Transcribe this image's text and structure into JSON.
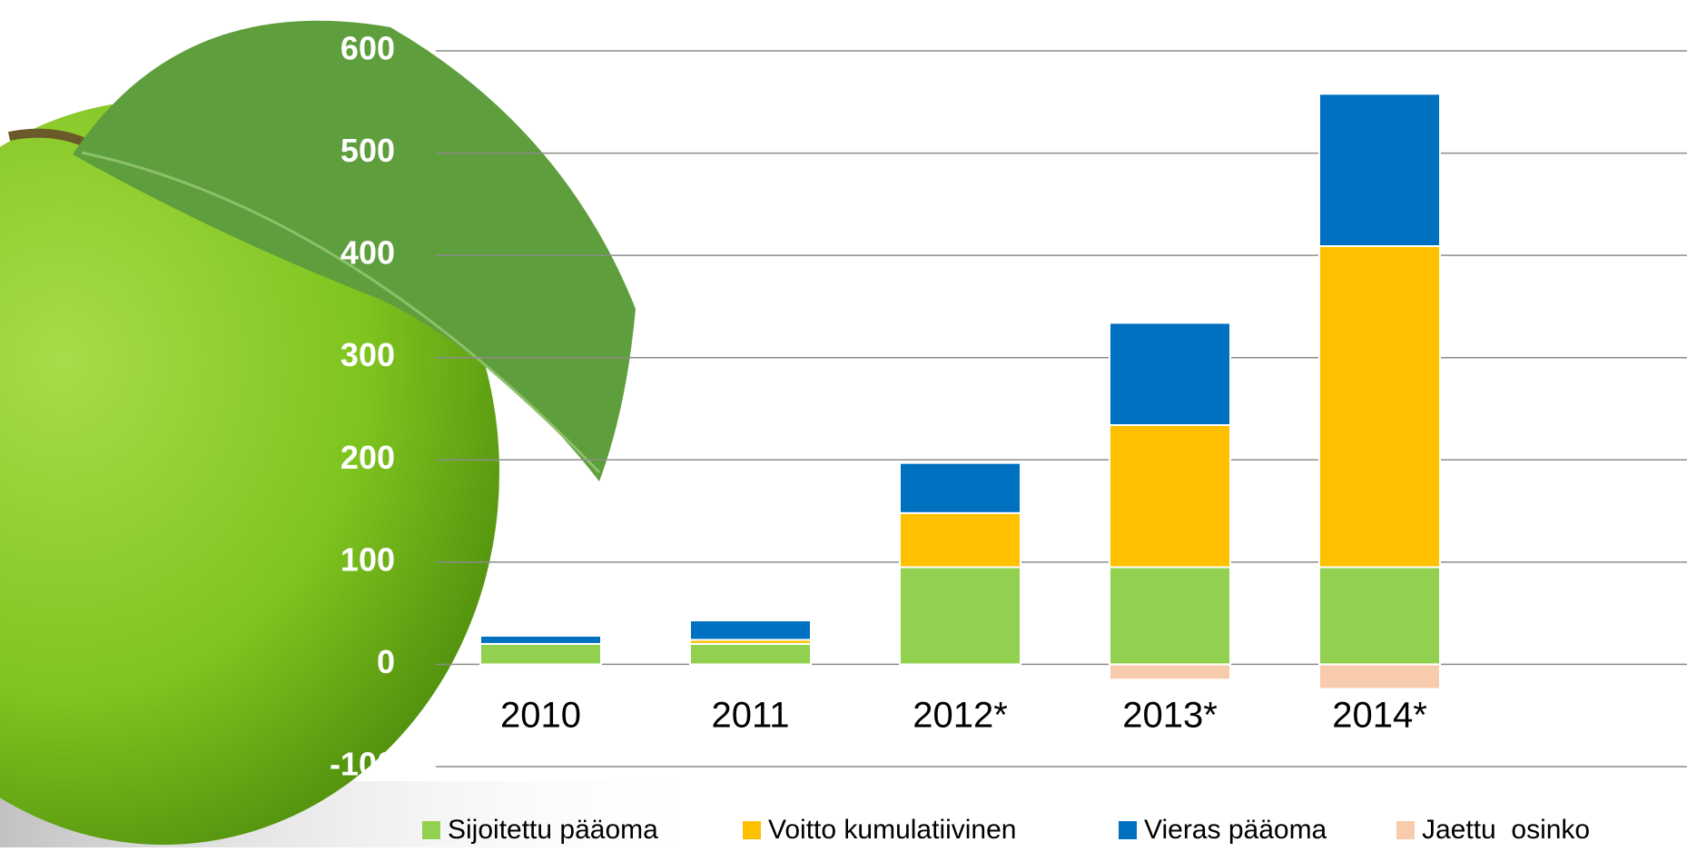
{
  "chart_data": {
    "type": "stacked_bar",
    "categories": [
      "2010",
      "2011",
      "2012*",
      "2013*",
      "2014*"
    ],
    "series": [
      {
        "name": "Sijoitettu pääoma",
        "color": "#92d050",
        "values": [
          20,
          20,
          95,
          95,
          95
        ]
      },
      {
        "name": "Voitto kumulatiivinen",
        "color": "#ffc000",
        "values": [
          0,
          4,
          53,
          139,
          314
        ]
      },
      {
        "name": "Vieras pääoma",
        "color": "#0070c0",
        "values": [
          8,
          19,
          49,
          100,
          149
        ]
      },
      {
        "name": "Jaettu  osinko",
        "color": "#f8cbad",
        "values": [
          0,
          0,
          0,
          -15,
          -24
        ]
      }
    ],
    "ylim": [
      -100,
      600
    ],
    "yticks": [
      -100,
      0,
      100,
      200,
      300,
      400,
      500,
      600
    ],
    "grid": true
  }
}
